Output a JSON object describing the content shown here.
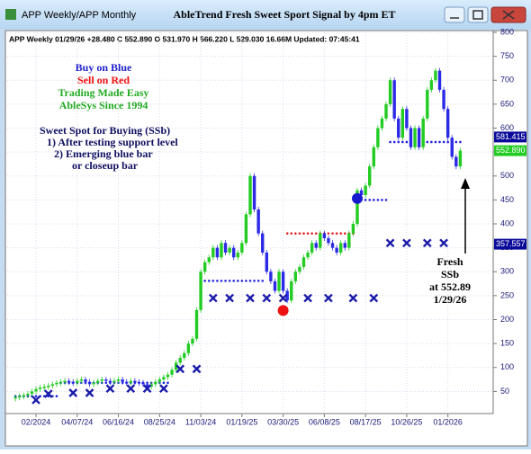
{
  "window": {
    "title": "APP Weekly/APP Monthly",
    "heading": "AbleTrend Fresh Sweet Sport Signal by 4pm ET"
  },
  "chart_data": {
    "type": "candle",
    "header": "APP  Weekly 01/29/26 +28.480 C 552.890 O 531.970 H 566.220 L 529.030 16.66M Updated: 07:45:41",
    "closes": [
      38,
      40,
      42,
      45,
      50,
      55,
      58,
      60,
      62,
      65,
      68,
      70,
      72,
      70,
      68,
      72,
      75,
      70,
      65,
      68,
      72,
      75,
      72,
      70,
      72,
      75,
      70,
      68,
      72,
      70,
      68,
      65,
      60,
      65,
      70,
      75,
      80,
      85,
      95,
      110,
      120,
      130,
      150,
      160,
      220,
      300,
      320,
      330,
      350,
      330,
      360,
      340,
      350,
      330,
      340,
      360,
      420,
      500,
      430,
      380,
      340,
      300,
      280,
      260,
      300,
      260,
      240,
      280,
      300,
      310,
      330,
      340,
      360,
      350,
      380,
      370,
      360,
      350,
      340,
      360,
      350,
      380,
      400,
      470,
      460,
      480,
      520,
      560,
      600,
      620,
      650,
      700,
      620,
      580,
      640,
      600,
      560,
      600,
      560,
      620,
      680,
      700,
      720,
      680,
      640,
      580,
      540,
      520,
      553
    ],
    "up_color": "#22cc22",
    "down_color": "#2a2ae6",
    "xlim": [
      -2,
      116
    ],
    "ylim": [
      0,
      800
    ],
    "yticks": [
      50,
      100,
      150,
      200,
      250,
      300,
      350,
      400,
      450,
      500,
      550,
      600,
      650,
      700,
      750,
      800
    ],
    "xticks": [
      {
        "value": 5,
        "label": "02/2024"
      },
      {
        "value": 15,
        "label": "04/07/24"
      },
      {
        "value": 25,
        "label": "06/16/24"
      },
      {
        "value": 35,
        "label": "08/25/24"
      },
      {
        "value": 45,
        "label": "11/03/24"
      },
      {
        "value": 55,
        "label": "01/19/25"
      },
      {
        "value": 65,
        "label": "03/30/25"
      },
      {
        "value": 75,
        "label": "06/08/25"
      },
      {
        "value": 85,
        "label": "08/17/25"
      },
      {
        "value": 95,
        "label": "10/26/25"
      },
      {
        "value": 105,
        "label": "01/2026"
      }
    ],
    "support_marks": {
      "color": "#1a1aaa",
      "x": [
        5,
        8,
        14,
        18,
        23,
        28,
        32,
        36,
        40,
        44,
        48,
        52,
        57,
        61,
        65,
        71,
        76,
        82,
        87,
        91,
        95,
        100,
        104
      ],
      "values": [
        32,
        45,
        47,
        47,
        56,
        56,
        56,
        56,
        97,
        97,
        245,
        245,
        245,
        245,
        245,
        245,
        245,
        245,
        245,
        360,
        360,
        360,
        360
      ]
    },
    "support_dots": {
      "color": "#2020dd",
      "segments": [
        {
          "from": 0,
          "to": 10,
          "value": 40
        },
        {
          "from": 11,
          "to": 37,
          "value": 68
        },
        {
          "from": 45,
          "to": 60,
          "value": 281
        },
        {
          "from": 83,
          "to": 90,
          "value": 450
        },
        {
          "from": 91,
          "to": 108,
          "value": 571
        }
      ]
    },
    "resistance_dots": {
      "color": "#dd2020",
      "segments": [
        {
          "from": 66,
          "to": 82,
          "value": 380
        }
      ]
    },
    "signals": [
      {
        "x": 83,
        "value": 453,
        "color": "#1a1ad0"
      },
      {
        "x": 65,
        "value": 219,
        "color": "#ee1111"
      }
    ],
    "price_labels": [
      {
        "value": 581.415,
        "label": "581.415",
        "color": "#0a0a9a"
      },
      {
        "value": 552.89,
        "label": "552.890",
        "color": "#22cc22"
      },
      {
        "value": 357.557,
        "label": "357.557",
        "color": "#0a0a9a"
      }
    ],
    "legend_notes": [
      {
        "text": "Buy on Blue",
        "color": "#2222cc"
      },
      {
        "text": "Sell on Red",
        "color": "#ee1111"
      },
      {
        "text": "Trading Made Easy",
        "color": "#22aa22"
      },
      {
        "text": "AbleSys Since 1994",
        "color": "#22aa22"
      }
    ],
    "ssb_notes": [
      "Sweet Spot for Buying (SSb)",
      "1) After testing support level",
      "2) Emerging blue bar",
      "or closeup bar"
    ],
    "callout": [
      "Fresh",
      "SSb",
      "at 552.89",
      "1/29/26"
    ]
  }
}
